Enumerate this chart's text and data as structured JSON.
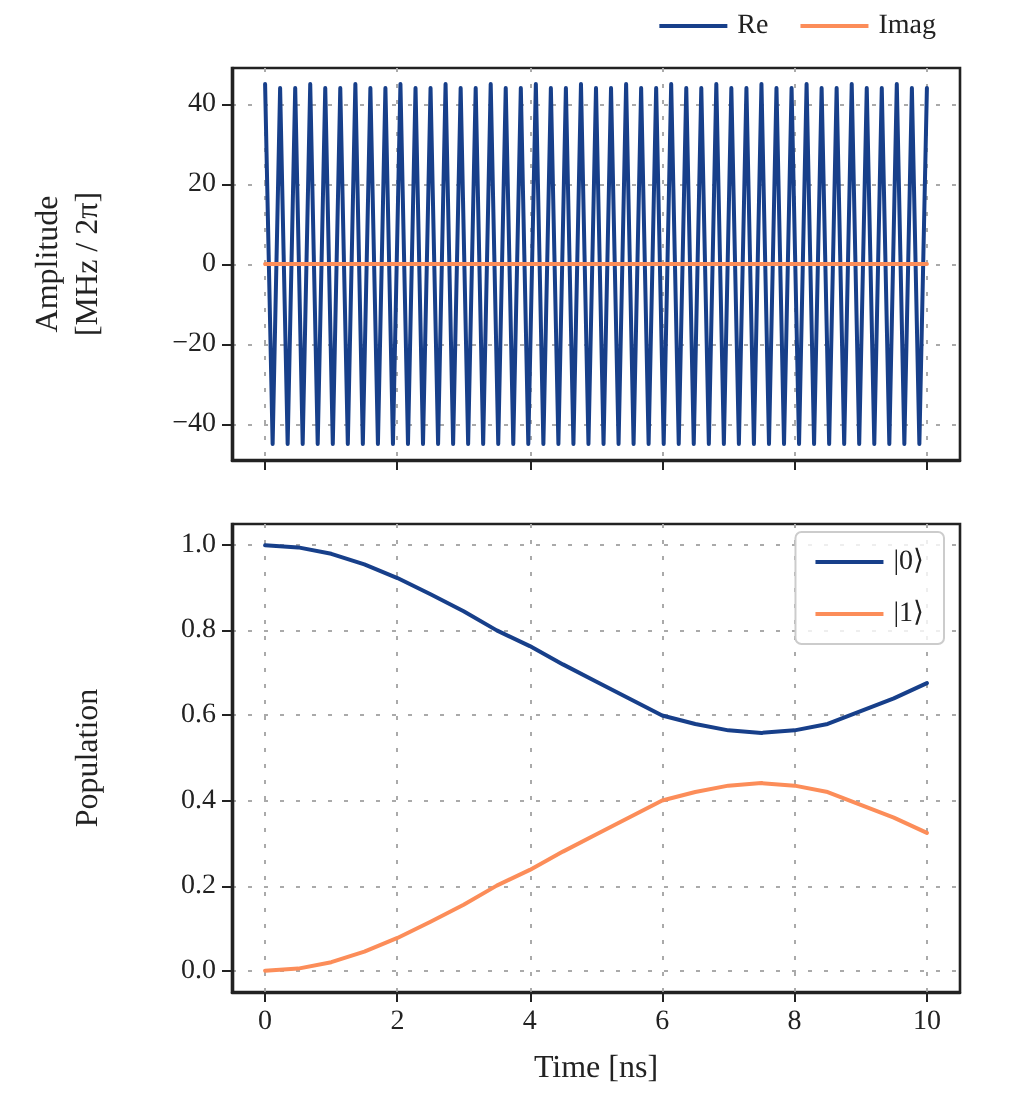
{
  "chart_data": [
    {
      "type": "line",
      "ylabel": "Amplitude\n[MHz / 2π]",
      "xlim": [
        -0.5,
        10.5
      ],
      "xticks": [
        0,
        2,
        4,
        6,
        8,
        10
      ],
      "ylim": [
        -49,
        49
      ],
      "yticks": [
        -40,
        -20,
        0,
        20,
        40
      ],
      "tick_labels": "y",
      "grid": true,
      "legend": "top right",
      "line_style": "solid",
      "marker": "none",
      "series": [
        {
          "name": "Re",
          "color": "#173f8a",
          "x": [
            0,
            0.114,
            0.227,
            0.341,
            0.455,
            0.568,
            0.682,
            0.795,
            0.909,
            1.023,
            1.136,
            1.25,
            1.364,
            1.477,
            1.591,
            1.705,
            1.818,
            1.932,
            2.045,
            2.159,
            2.273,
            2.386,
            2.5,
            2.614,
            2.727,
            2.841,
            2.955,
            3.068,
            3.182,
            3.295,
            3.409,
            3.523,
            3.636,
            3.75,
            3.864,
            3.977,
            4.091,
            4.205,
            4.318,
            4.432,
            4.545,
            4.659,
            4.773,
            4.886,
            5,
            5.114,
            5.227,
            5.341,
            5.455,
            5.568,
            5.682,
            5.795,
            5.909,
            6.023,
            6.136,
            6.25,
            6.364,
            6.477,
            6.591,
            6.705,
            6.818,
            6.932,
            7.045,
            7.159,
            7.273,
            7.386,
            7.5,
            7.614,
            7.727,
            7.841,
            7.955,
            8.068,
            8.182,
            8.295,
            8.409,
            8.523,
            8.636,
            8.75,
            8.864,
            8.977,
            9.091,
            9.205,
            9.318,
            9.432,
            9.545,
            9.659,
            9.773,
            9.886,
            10
          ],
          "values": [
            45,
            -45,
            44,
            -45,
            44,
            -45,
            45,
            -45,
            44,
            -45,
            44,
            -45,
            45,
            -45,
            44,
            -45,
            44,
            -45,
            45,
            -45,
            44,
            -45,
            44,
            -45,
            45,
            -45,
            44,
            -45,
            44,
            -45,
            45,
            -45,
            44,
            -45,
            44,
            -45,
            45,
            -45,
            44,
            -45,
            44,
            -45,
            45,
            -45,
            44,
            -45,
            44,
            -45,
            45,
            -45,
            44,
            -45,
            44,
            -45,
            45,
            -45,
            44,
            -45,
            44,
            -45,
            45,
            -45,
            44,
            -45,
            44,
            -45,
            45,
            -45,
            44,
            -45,
            44,
            -45,
            45,
            -45,
            44,
            -45,
            44,
            -45,
            45,
            -45,
            44,
            -45,
            44,
            -45,
            45,
            -45,
            44,
            -45,
            44
          ]
        },
        {
          "name": "Imag",
          "color": "#fc8d59",
          "x": [
            0,
            10
          ],
          "values": [
            0,
            0
          ]
        }
      ]
    },
    {
      "type": "line",
      "xlabel": "Time [ns]",
      "ylabel": "Population",
      "xlim": [
        -0.5,
        10.5
      ],
      "xticks": [
        0,
        2,
        4,
        6,
        8,
        10
      ],
      "ylim": [
        -0.05,
        1.05
      ],
      "yticks": [
        {
          "value": 0,
          "label": "0.0"
        },
        0.2,
        0.4,
        0.6,
        0.8,
        {
          "value": 1,
          "label": "1.0"
        }
      ],
      "grid": true,
      "legend": "top right",
      "line_style": "solid",
      "marker": "none",
      "series": [
        {
          "name": "|0⟩",
          "color": "#173f8a",
          "x": [
            0,
            0.5,
            1,
            1.5,
            2,
            2.5,
            3,
            3.5,
            4,
            4.5,
            5,
            5.5,
            6,
            6.5,
            7,
            7.5,
            8,
            8.5,
            9,
            9.5,
            10
          ],
          "values": [
            1.0,
            0.995,
            0.98,
            0.955,
            0.923,
            0.885,
            0.845,
            0.8,
            0.763,
            0.72,
            0.68,
            0.64,
            0.6,
            0.58,
            0.565,
            0.559,
            0.565,
            0.58,
            0.61,
            0.64,
            0.676
          ]
        },
        {
          "name": "|1⟩",
          "color": "#fc8d59",
          "x": [
            0,
            0.5,
            1,
            1.5,
            2,
            2.5,
            3,
            3.5,
            4,
            4.5,
            5,
            5.5,
            6,
            6.5,
            7,
            7.5,
            8,
            8.5,
            9,
            9.5,
            10
          ],
          "values": [
            0,
            0.005,
            0.02,
            0.045,
            0.077,
            0.115,
            0.155,
            0.2,
            0.237,
            0.28,
            0.32,
            0.36,
            0.4,
            0.42,
            0.435,
            0.441,
            0.435,
            0.42,
            0.39,
            0.36,
            0.324
          ]
        }
      ]
    }
  ]
}
